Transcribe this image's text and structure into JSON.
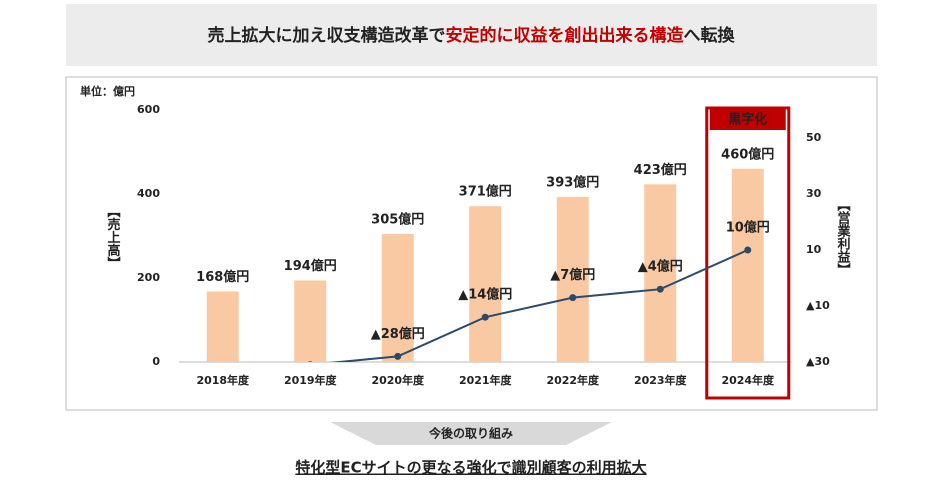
{
  "header": {
    "title_parts": [
      {
        "text": "売上拡大に加え収支構造改革で",
        "color": "#222222"
      },
      {
        "text": "安定的に収益を創出出来る構造",
        "color": "#c00000"
      },
      {
        "text": "へ転換",
        "color": "#222222"
      }
    ]
  },
  "chart_data": {
    "type": "bar-line",
    "unit": "単位：億円",
    "ylabel": "【売上高】",
    "y2label": "【営業利益】",
    "categories": [
      "2018年度",
      "2019年度",
      "2020年度",
      "2021年度",
      "2022年度",
      "2023年度",
      "2024年度"
    ],
    "series": [
      {
        "name": "売上高",
        "type": "bar",
        "color": "#f9c9a3",
        "values": [
          168,
          194,
          305,
          371,
          393,
          423,
          460
        ],
        "value_labels": [
          "168億円",
          "194億円",
          "305億円",
          "371億円",
          "393億円",
          "423億円",
          "460億円"
        ]
      },
      {
        "name": "営業利益",
        "type": "line",
        "axis": "y2",
        "color": "#2e4a6b",
        "values": [
          null,
          -31,
          -28,
          -14,
          -7,
          -4,
          10
        ],
        "value_labels": [
          null,
          null,
          "▲28億円",
          "▲14億円",
          "▲7億円",
          "▲4億円",
          "10億円"
        ],
        "label_colors": {
          "negative": "#c00000",
          "positive": "#2e75b6"
        }
      }
    ],
    "ylim": [
      0,
      600
    ],
    "yticks": [
      0,
      200,
      400,
      600
    ],
    "y2lim": [
      -30,
      60
    ],
    "y2ticks": [
      {
        "value": -30,
        "label": "▲30"
      },
      {
        "value": -10,
        "label": "▲10"
      },
      10,
      30,
      50
    ],
    "highlight": {
      "category": "2024年度",
      "label": "黒字化",
      "color": "#c00000"
    }
  },
  "footer": {
    "label": "今後の取り組み",
    "text": "特化型ECサイトの更なる強化で識別顧客の利用拡大"
  }
}
